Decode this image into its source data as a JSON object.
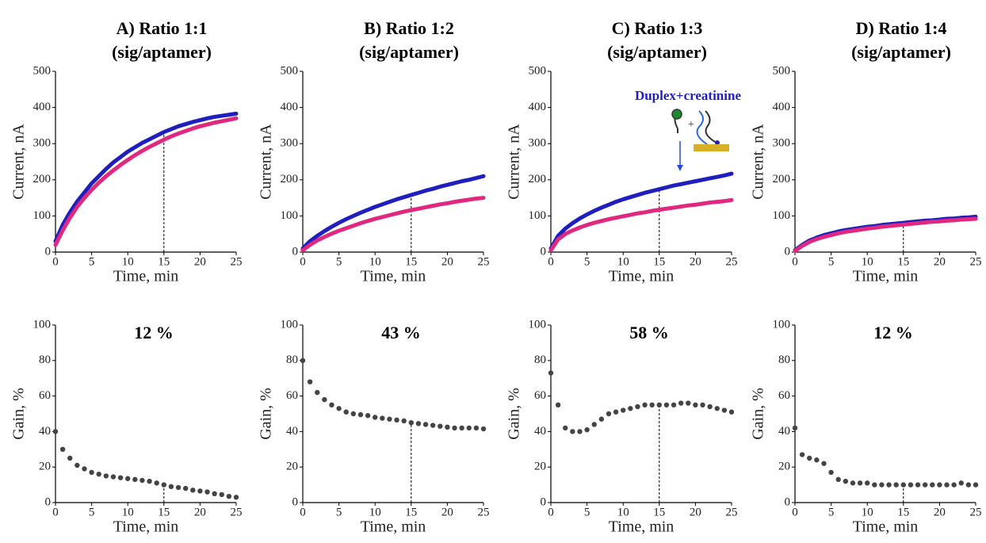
{
  "chart_data": [
    {
      "type": "line",
      "title": "A) Ratio 1:1",
      "subtitle": "(sig/aptamer)",
      "xlabel": "Time, min",
      "ylabel": "Current, nA",
      "x": [
        0,
        1,
        2,
        3,
        4,
        5,
        6,
        7,
        8,
        9,
        10,
        11,
        12,
        13,
        14,
        15,
        16,
        17,
        18,
        19,
        20,
        21,
        22,
        23,
        24,
        25
      ],
      "series": [
        {
          "color": "#1f1fbf",
          "values": [
            30,
            75,
            110,
            140,
            165,
            190,
            210,
            230,
            248,
            263,
            278,
            290,
            302,
            312,
            322,
            332,
            340,
            348,
            354,
            360,
            365,
            370,
            374,
            377,
            380,
            383
          ]
        },
        {
          "color": "#e0287f",
          "values": [
            20,
            60,
            95,
            125,
            150,
            172,
            192,
            210,
            226,
            241,
            255,
            268,
            280,
            291,
            301,
            311,
            320,
            328,
            335,
            342,
            348,
            353,
            358,
            362,
            366,
            370
          ]
        }
      ],
      "xlim": [
        0,
        25
      ],
      "xticks": [
        0,
        5,
        10,
        15,
        20,
        25
      ],
      "ylim": [
        0,
        500
      ],
      "yticks": [
        0,
        100,
        200,
        300,
        400,
        500
      ],
      "vline_x": 15
    },
    {
      "type": "line",
      "title": "B) Ratio 1:2",
      "subtitle": "(sig/aptamer)",
      "xlabel": "Time, min",
      "ylabel": "Current, nA",
      "x": [
        0,
        1,
        2,
        3,
        4,
        5,
        6,
        7,
        8,
        9,
        10,
        11,
        12,
        13,
        14,
        15,
        16,
        17,
        18,
        19,
        20,
        21,
        22,
        23,
        24,
        25
      ],
      "series": [
        {
          "color": "#1f1fbf",
          "values": [
            10,
            30,
            45,
            58,
            70,
            81,
            91,
            100,
            109,
            117,
            125,
            132,
            139,
            146,
            152,
            158,
            164,
            170,
            175,
            181,
            186,
            191,
            196,
            200,
            205,
            210
          ]
        },
        {
          "color": "#e0287f",
          "values": [
            5,
            20,
            32,
            42,
            51,
            59,
            66,
            73,
            80,
            86,
            92,
            97,
            102,
            107,
            112,
            116,
            120,
            124,
            128,
            132,
            135,
            139,
            142,
            145,
            148,
            150
          ]
        }
      ],
      "xlim": [
        0,
        25
      ],
      "xticks": [
        0,
        5,
        10,
        15,
        20,
        25
      ],
      "ylim": [
        0,
        500
      ],
      "yticks": [
        0,
        100,
        200,
        300,
        400,
        500
      ],
      "vline_x": 15
    },
    {
      "type": "line",
      "title": "C) Ratio 1:3",
      "subtitle": "(sig/aptamer)",
      "xlabel": "Time, min",
      "ylabel": "Current, nA",
      "annotation": "Duplex+creatinine",
      "x": [
        0,
        1,
        2,
        3,
        4,
        5,
        6,
        7,
        8,
        9,
        10,
        11,
        12,
        13,
        14,
        15,
        16,
        17,
        18,
        19,
        20,
        21,
        22,
        23,
        24,
        25
      ],
      "series": [
        {
          "color": "#1f1fbf",
          "values": [
            10,
            45,
            65,
            80,
            93,
            104,
            114,
            123,
            131,
            139,
            146,
            152,
            158,
            164,
            169,
            174,
            179,
            184,
            188,
            192,
            196,
            200,
            204,
            208,
            212,
            217
          ]
        },
        {
          "color": "#e0287f",
          "values": [
            5,
            35,
            50,
            60,
            68,
            75,
            81,
            86,
            91,
            95,
            99,
            103,
            107,
            110,
            114,
            117,
            120,
            123,
            126,
            129,
            131,
            134,
            137,
            139,
            141,
            144
          ]
        }
      ],
      "xlim": [
        0,
        25
      ],
      "xticks": [
        0,
        5,
        10,
        15,
        20,
        25
      ],
      "ylim": [
        0,
        500
      ],
      "yticks": [
        0,
        100,
        200,
        300,
        400,
        500
      ],
      "vline_x": 15
    },
    {
      "type": "line",
      "title": "D) Ratio 1:4",
      "subtitle": "(sig/aptamer)",
      "xlabel": "Time, min",
      "ylabel": "Current, nA",
      "x": [
        0,
        1,
        2,
        3,
        4,
        5,
        6,
        7,
        8,
        9,
        10,
        11,
        12,
        13,
        14,
        15,
        16,
        17,
        18,
        19,
        20,
        21,
        22,
        23,
        24,
        25
      ],
      "series": [
        {
          "color": "#1f1fbf",
          "values": [
            5,
            20,
            32,
            40,
            47,
            52,
            57,
            61,
            64,
            67,
            70,
            72,
            75,
            77,
            79,
            81,
            83,
            85,
            87,
            88,
            90,
            92,
            93,
            95,
            96,
            98
          ]
        },
        {
          "color": "#e0287f",
          "values": [
            3,
            17,
            28,
            36,
            42,
            47,
            52,
            56,
            59,
            62,
            65,
            67,
            70,
            72,
            74,
            76,
            78,
            80,
            82,
            84,
            85,
            87,
            88,
            90,
            91,
            92
          ]
        }
      ],
      "xlim": [
        0,
        25
      ],
      "xticks": [
        0,
        5,
        10,
        15,
        20,
        25
      ],
      "ylim": [
        0,
        500
      ],
      "yticks": [
        0,
        100,
        200,
        300,
        400,
        500
      ],
      "vline_x": 15
    },
    {
      "type": "scatter",
      "annotation": "12 %",
      "xlabel": "Time, min",
      "ylabel": "Gain, %",
      "x": [
        0,
        1,
        2,
        3,
        4,
        5,
        6,
        7,
        8,
        9,
        10,
        11,
        12,
        13,
        14,
        15,
        16,
        17,
        18,
        19,
        20,
        21,
        22,
        23,
        24,
        25
      ],
      "series": [
        {
          "color": "#444444",
          "values": [
            40,
            30,
            25,
            21,
            19,
            17,
            16,
            15,
            14.5,
            14,
            13.5,
            13,
            12.5,
            12,
            11,
            10,
            9,
            8.5,
            8,
            7,
            6.5,
            6,
            5,
            4.5,
            3.5,
            3
          ]
        }
      ],
      "xlim": [
        0,
        25
      ],
      "xticks": [
        0,
        5,
        10,
        15,
        20,
        25
      ],
      "ylim": [
        0,
        100
      ],
      "yticks": [
        0,
        20,
        40,
        60,
        80,
        100
      ],
      "vline_x": 15
    },
    {
      "type": "scatter",
      "annotation": "43 %",
      "xlabel": "Time, min",
      "ylabel": "Gain, %",
      "x": [
        0,
        1,
        2,
        3,
        4,
        5,
        6,
        7,
        8,
        9,
        10,
        11,
        12,
        13,
        14,
        15,
        16,
        17,
        18,
        19,
        20,
        21,
        22,
        23,
        24,
        25
      ],
      "series": [
        {
          "color": "#444444",
          "values": [
            80,
            68,
            62,
            58,
            55,
            53,
            51,
            50,
            49.5,
            49,
            48,
            47.5,
            47,
            46.5,
            46,
            45,
            44.5,
            44,
            43.5,
            43,
            42.5,
            42,
            42,
            42,
            42,
            41.5
          ]
        }
      ],
      "xlim": [
        0,
        25
      ],
      "xticks": [
        0,
        5,
        10,
        15,
        20,
        25
      ],
      "ylim": [
        0,
        100
      ],
      "yticks": [
        0,
        20,
        40,
        60,
        80,
        100
      ],
      "vline_x": 15
    },
    {
      "type": "scatter",
      "annotation": "58 %",
      "xlabel": "Time, min",
      "ylabel": "Gain, %",
      "x": [
        0,
        1,
        2,
        3,
        4,
        5,
        6,
        7,
        8,
        9,
        10,
        11,
        12,
        13,
        14,
        15,
        16,
        17,
        18,
        19,
        20,
        21,
        22,
        23,
        24,
        25
      ],
      "series": [
        {
          "color": "#444444",
          "values": [
            73,
            55,
            42,
            40,
            40,
            41,
            44,
            47,
            50,
            51,
            52,
            53,
            54,
            55,
            55,
            55,
            55,
            55,
            56,
            56,
            55,
            55,
            54,
            53,
            52,
            51
          ]
        }
      ],
      "xlim": [
        0,
        25
      ],
      "xticks": [
        0,
        5,
        10,
        15,
        20,
        25
      ],
      "ylim": [
        0,
        100
      ],
      "yticks": [
        0,
        20,
        40,
        60,
        80,
        100
      ],
      "vline_x": 15
    },
    {
      "type": "scatter",
      "annotation": "12 %",
      "xlabel": "Time, min",
      "ylabel": "Gain, %",
      "x": [
        0,
        1,
        2,
        3,
        4,
        5,
        6,
        7,
        8,
        9,
        10,
        11,
        12,
        13,
        14,
        15,
        16,
        17,
        18,
        19,
        20,
        21,
        22,
        23,
        24,
        25
      ],
      "series": [
        {
          "color": "#444444",
          "values": [
            42,
            27,
            25,
            24,
            22,
            17,
            13,
            12,
            11,
            11,
            11,
            10,
            10,
            10,
            10,
            10,
            10,
            10,
            10,
            10,
            10,
            10,
            10,
            11,
            10,
            10
          ]
        }
      ],
      "xlim": [
        0,
        25
      ],
      "xticks": [
        0,
        5,
        10,
        15,
        20,
        25
      ],
      "ylim": [
        0,
        100
      ],
      "yticks": [
        0,
        20,
        40,
        60,
        80,
        100
      ],
      "vline_x": 15
    }
  ]
}
